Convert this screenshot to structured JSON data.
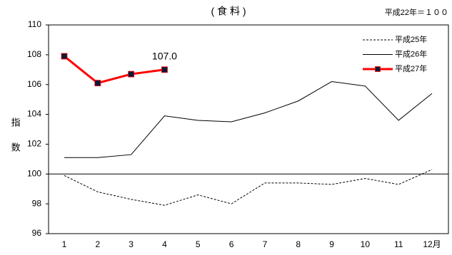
{
  "chart_data": {
    "type": "line",
    "title": "( 食 料 )",
    "note": "平成22年＝１００",
    "y_label": "指数",
    "categories": [
      "1",
      "2",
      "3",
      "4",
      "5",
      "6",
      "7",
      "8",
      "9",
      "10",
      "11",
      "12月"
    ],
    "series": [
      {
        "name": "平成25年",
        "color": "#000000",
        "style": "dashed",
        "values": [
          99.9,
          98.8,
          98.3,
          97.9,
          98.6,
          98.0,
          99.4,
          99.4,
          99.3,
          99.7,
          99.3,
          100.3
        ]
      },
      {
        "name": "平成26年",
        "color": "#000000",
        "style": "solid",
        "values": [
          101.1,
          101.1,
          101.3,
          103.9,
          103.6,
          103.5,
          104.1,
          104.9,
          106.2,
          105.9,
          103.6,
          105.4
        ]
      },
      {
        "name": "平成27年",
        "color": "#ff0000",
        "style": "marker",
        "marker_color": "#0a1a3a",
        "values": [
          107.9,
          106.1,
          106.7,
          107.0,
          null,
          null,
          null,
          null,
          null,
          null,
          null,
          null
        ],
        "value_labels": [
          null,
          null,
          null,
          "107.0",
          null,
          null,
          null,
          null,
          null,
          null,
          null,
          null
        ]
      }
    ],
    "ylim": [
      96,
      110
    ],
    "yticks": [
      96,
      98,
      100,
      102,
      104,
      106,
      108,
      110
    ],
    "hline": 100,
    "legend": "top-right",
    "grid": false
  }
}
